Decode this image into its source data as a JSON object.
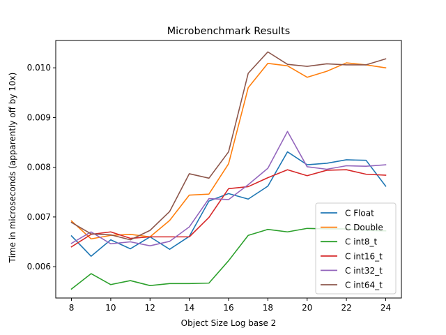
{
  "chart_data": {
    "type": "line",
    "title": "Microbenchmark Results",
    "xlabel": "Object Size Log base 2",
    "ylabel": "Time in microseconds (apparently off by 10x)",
    "x": [
      8,
      9,
      10,
      11,
      12,
      13,
      14,
      15,
      16,
      17,
      18,
      19,
      20,
      21,
      22,
      23,
      24
    ],
    "xlim": [
      7.2,
      24.8
    ],
    "ylim": [
      0.00537,
      0.01055
    ],
    "xticks": [
      8,
      10,
      12,
      14,
      16,
      18,
      20,
      22,
      24
    ],
    "yticks": [
      0.006,
      0.007,
      0.008,
      0.009,
      0.01
    ],
    "ytick_labels": [
      "0.006",
      "0.007",
      "0.008",
      "0.009",
      "0.010"
    ],
    "grid": false,
    "legend_position": "bottom-right",
    "series": [
      {
        "name": "C Float",
        "color": "#1f77b4",
        "values": [
          0.00662,
          0.00621,
          0.00654,
          0.00636,
          0.0066,
          0.00635,
          0.00661,
          0.00732,
          0.00747,
          0.00736,
          0.00762,
          0.00831,
          0.00805,
          0.00808,
          0.00815,
          0.00814,
          0.00762
        ]
      },
      {
        "name": "C Double",
        "color": "#ff7f0e",
        "values": [
          0.00692,
          0.00656,
          0.00663,
          0.00665,
          0.0066,
          0.00693,
          0.00744,
          0.00746,
          0.00807,
          0.0096,
          0.01009,
          0.01004,
          0.00981,
          0.00993,
          0.0101,
          0.01006,
          0.01
        ]
      },
      {
        "name": "C int8_t",
        "color": "#2ca02c",
        "values": [
          0.00555,
          0.00586,
          0.00564,
          0.00572,
          0.00562,
          0.00566,
          0.00566,
          0.00567,
          0.00612,
          0.00663,
          0.00675,
          0.0067,
          0.00677,
          0.00676,
          0.00676,
          0.00673,
          0.00672
        ]
      },
      {
        "name": "C int16_t",
        "color": "#d62728",
        "values": [
          0.0064,
          0.00665,
          0.0067,
          0.00657,
          0.0066,
          0.0066,
          0.0066,
          0.00699,
          0.00757,
          0.00761,
          0.00779,
          0.00795,
          0.00783,
          0.00794,
          0.00795,
          0.00786,
          0.00784
        ]
      },
      {
        "name": "C int32_t",
        "color": "#9467bd",
        "values": [
          0.00647,
          0.0067,
          0.00646,
          0.0065,
          0.00642,
          0.00651,
          0.0068,
          0.00737,
          0.00735,
          0.00765,
          0.00798,
          0.00872,
          0.00801,
          0.00796,
          0.00803,
          0.00802,
          0.00805
        ]
      },
      {
        "name": "C int64_t",
        "color": "#8c564b",
        "values": [
          0.00689,
          0.00666,
          0.00664,
          0.00654,
          0.00673,
          0.00711,
          0.00787,
          0.00778,
          0.00831,
          0.00989,
          0.01032,
          0.01007,
          0.01003,
          0.01008,
          0.01006,
          0.01006,
          0.01018
        ]
      }
    ]
  }
}
